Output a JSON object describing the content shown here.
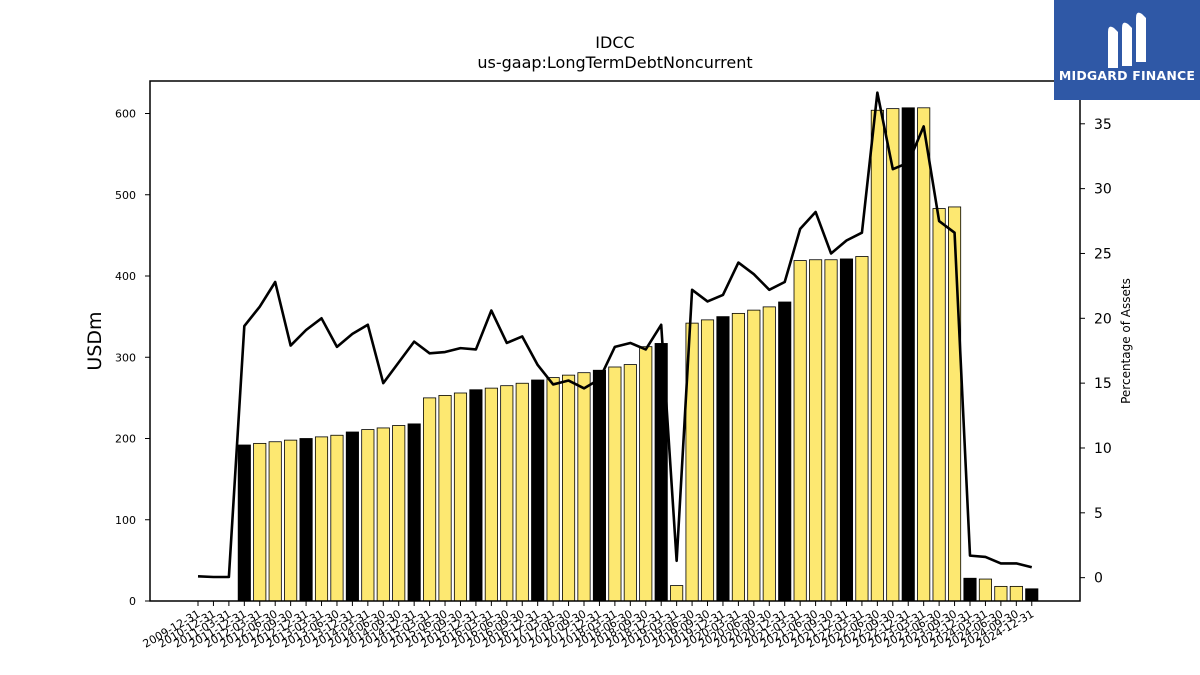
{
  "chart_data": {
    "type": "bar",
    "title": "IDCC",
    "subtitle": "us-gaap:LongTermDebtNoncurrent",
    "ylabel": "USDm",
    "y2label": "Percentage of Assets",
    "ylim": [
      0,
      640
    ],
    "y2lim": [
      -1.8,
      38.3
    ],
    "yticks": [
      0,
      100,
      200,
      300,
      400,
      500,
      600
    ],
    "y2ticks": [
      0,
      5,
      10,
      15,
      20,
      25,
      30,
      35
    ],
    "grid": false,
    "colors": {
      "bar_default": "#fde871",
      "bar_highlight": "#000000",
      "line": "#000000",
      "edge": "#000000"
    },
    "categories": [
      "2009-12-31",
      "2010-12-31",
      "2011-03-31",
      "2011-12-31",
      "2012-03-31",
      "2012-06-30",
      "2012-09-30",
      "2012-12-31",
      "2013-03-31",
      "2013-06-30",
      "2013-12-31",
      "2014-03-31",
      "2014-06-30",
      "2014-09-30",
      "2014-12-31",
      "2015-03-31",
      "2015-06-30",
      "2015-09-30",
      "2015-12-31",
      "2016-03-31",
      "2016-06-30",
      "2016-09-30",
      "2016-12-31",
      "2017-03-31",
      "2017-06-30",
      "2017-09-30",
      "2017-12-31",
      "2018-03-31",
      "2018-06-30",
      "2018-09-30",
      "2018-12-31",
      "2019-03-31",
      "2019-06-30",
      "2019-09-30",
      "2019-12-31",
      "2020-03-31",
      "2020-06-30",
      "2020-09-30",
      "2020-12-31",
      "2021-03-31",
      "2021-06-30",
      "2021-09-30",
      "2021-12-31",
      "2022-03-31",
      "2022-06-30",
      "2022-09-30",
      "2022-12-31",
      "2023-03-31",
      "2023-06-30",
      "2023-09-30",
      "2023-12-31",
      "2024-03-31",
      "2024-06-30",
      "2024-09-30",
      "2024-12-31"
    ],
    "series": [
      {
        "type": "bar",
        "values": [
          0,
          0,
          0,
          192,
          194,
          196,
          198,
          200,
          202,
          204,
          208,
          211,
          213,
          216,
          218,
          250,
          253,
          256,
          260,
          262,
          265,
          268,
          272,
          275,
          278,
          281,
          284,
          288,
          291,
          313,
          317,
          19,
          342,
          346,
          350,
          354,
          358,
          362,
          368,
          419,
          420,
          420,
          421,
          424,
          604,
          606,
          607,
          607,
          483,
          485,
          28,
          27,
          18,
          18,
          15
        ],
        "highlight": [
          false,
          false,
          false,
          true,
          false,
          false,
          false,
          true,
          false,
          false,
          true,
          false,
          false,
          false,
          true,
          false,
          false,
          false,
          true,
          false,
          false,
          false,
          true,
          false,
          false,
          false,
          true,
          false,
          false,
          false,
          true,
          false,
          false,
          false,
          true,
          false,
          false,
          false,
          true,
          false,
          false,
          false,
          true,
          false,
          false,
          false,
          true,
          false,
          false,
          false,
          true,
          false,
          false,
          false,
          true
        ]
      },
      {
        "type": "line",
        "axis": "right",
        "values": [
          0.1,
          0.05,
          0.05,
          19.4,
          20.9,
          22.8,
          17.9,
          19.1,
          20.0,
          17.8,
          18.8,
          19.5,
          15.0,
          16.6,
          18.2,
          17.3,
          17.4,
          17.7,
          17.6,
          20.6,
          18.1,
          18.6,
          16.4,
          14.9,
          15.2,
          14.6,
          15.3,
          17.8,
          18.1,
          17.6,
          19.5,
          1.3,
          22.2,
          21.3,
          21.8,
          24.3,
          23.4,
          22.2,
          22.8,
          26.9,
          28.2,
          25.0,
          26.0,
          26.6,
          37.4,
          31.5,
          32.0,
          34.8,
          27.5,
          26.6,
          1.7,
          1.6,
          1.1,
          1.1,
          0.8
        ]
      }
    ]
  },
  "brand": {
    "name": "MIDGARD FINANCE",
    "logo_icon": "midgard-logo-icon"
  }
}
